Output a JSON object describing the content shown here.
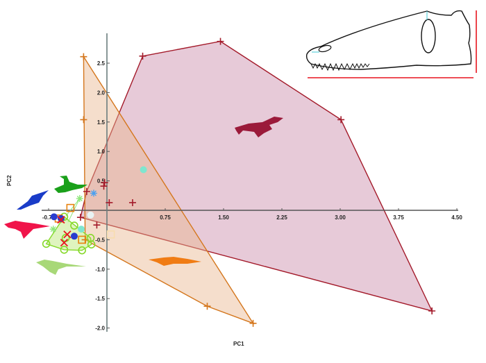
{
  "chart_data": {
    "type": "scatter",
    "xlabel": "PC1",
    "ylabel": "PC2",
    "xlim": [
      -0.9,
      4.55
    ],
    "ylim": [
      -2.05,
      2.95
    ],
    "xticks": [
      -0.75,
      0.75,
      1.5,
      2.25,
      3.0,
      3.75,
      4.5
    ],
    "xtick_labels": [
      "-0.75",
      "0.75",
      "1.50",
      "2.25",
      "3.00",
      "3.75",
      "4.50"
    ],
    "yticks": [
      2.5,
      2.0,
      1.5,
      1.0,
      0.5,
      -0.5,
      -1.0,
      -1.5,
      -2.0
    ],
    "ytick_labels": [
      "2.5",
      "2.0",
      "1.5",
      "1.0",
      "0.5",
      "-0.5",
      "-1.0",
      "-1.5",
      "-2.0"
    ],
    "grid": false,
    "series": [
      {
        "marker": "plus",
        "color": "#a31a2a",
        "fill": "#c98aa8",
        "hull": true,
        "points": [
          [
            0.46,
            2.62
          ],
          [
            1.46,
            2.87
          ],
          [
            3.01,
            1.54
          ],
          [
            4.18,
            -1.71
          ],
          [
            -0.34,
            -0.12
          ],
          [
            -0.26,
            0.32
          ],
          [
            -0.03,
            0.47
          ],
          [
            -0.04,
            0.41
          ],
          [
            0.03,
            0.13
          ],
          [
            0.33,
            0.13
          ],
          [
            -0.13,
            -0.25
          ]
        ],
        "hull_points": [
          [
            0.46,
            2.62
          ],
          [
            1.46,
            2.87
          ],
          [
            3.01,
            1.54
          ],
          [
            4.18,
            -1.71
          ],
          [
            -0.34,
            -0.12
          ],
          [
            -0.26,
            0.32
          ]
        ]
      },
      {
        "marker": "plus",
        "color": "#d4761c",
        "fill": "#e9b58f",
        "hull": true,
        "points": [
          [
            -0.3,
            2.61
          ],
          [
            -0.3,
            1.54
          ],
          [
            -0.28,
            -0.5
          ],
          [
            1.29,
            -1.63
          ],
          [
            1.88,
            -1.92
          ]
        ],
        "hull_points": [
          [
            -0.3,
            2.61
          ],
          [
            1.88,
            -1.92
          ],
          [
            1.29,
            -1.63
          ],
          [
            -0.28,
            -0.5
          ]
        ]
      },
      {
        "marker": "circle-open",
        "color": "#86d92a",
        "fill": "#c4eb8a",
        "hull": true,
        "points": [
          [
            -0.55,
            -0.11
          ],
          [
            -0.42,
            -0.26
          ],
          [
            -0.21,
            -0.47
          ],
          [
            -0.2,
            -0.58
          ],
          [
            -0.32,
            -0.68
          ],
          [
            -0.55,
            -0.67
          ],
          [
            -0.78,
            -0.57
          ],
          [
            -0.53,
            -0.47
          ]
        ],
        "hull_points": [
          [
            -0.55,
            -0.11
          ],
          [
            -0.21,
            -0.47
          ],
          [
            -0.2,
            -0.58
          ],
          [
            -0.32,
            -0.68
          ],
          [
            -0.55,
            -0.67
          ],
          [
            -0.78,
            -0.57
          ]
        ]
      },
      {
        "marker": "square-open",
        "color": "#e8820e",
        "points": [
          [
            -0.47,
            0.04
          ],
          [
            -0.32,
            -0.5
          ],
          [
            -0.62,
            -0.14
          ]
        ]
      },
      {
        "marker": "square-open",
        "color": "#f7dcae",
        "points": [
          [
            0.05,
            -0.41
          ]
        ]
      },
      {
        "marker": "star",
        "color": "#8ee67a",
        "points": [
          [
            -0.35,
            0.2
          ],
          [
            -0.69,
            -0.32
          ]
        ],
        "links": [
          [
            [
              -0.35,
              0.2
            ],
            [
              -0.53,
              -0.1
            ]
          ],
          [
            [
              -0.35,
              0.2
            ],
            [
              -0.5,
              -0.2
            ]
          ]
        ]
      },
      {
        "marker": "circle",
        "color": "#2a3ccf",
        "points": [
          [
            -0.68,
            -0.11
          ],
          [
            -0.59,
            -0.14
          ],
          [
            -0.42,
            -0.44
          ]
        ]
      },
      {
        "marker": "cross",
        "color": "#e8141e",
        "points": [
          [
            -0.59,
            -0.16
          ],
          [
            -0.55,
            -0.55
          ],
          [
            -0.51,
            -0.41
          ]
        ]
      },
      {
        "marker": "circle",
        "color": "#7fe6cf",
        "points": [
          [
            0.47,
            0.69
          ],
          [
            -0.33,
            -0.32
          ]
        ]
      },
      {
        "marker": "circle",
        "color": "#e8f4f4",
        "points": [
          [
            -0.21,
            -0.08
          ]
        ]
      },
      {
        "marker": "asterisk",
        "color": "#4aa0f0",
        "points": [
          [
            -0.17,
            0.29
          ]
        ]
      }
    ],
    "silhouettes": {
      "crocodile": "#9b1a3a",
      "gharial": "#f07c14",
      "lizard": "#1aa01a",
      "plesiosaur": "#1a3cc8",
      "theropod-red": "#f0144a",
      "theropod-light": "#a8d878"
    },
    "inset": {
      "name": "skull-outline",
      "measure_color": "#e8141e",
      "landmark_color": "#3ec8d4"
    }
  }
}
